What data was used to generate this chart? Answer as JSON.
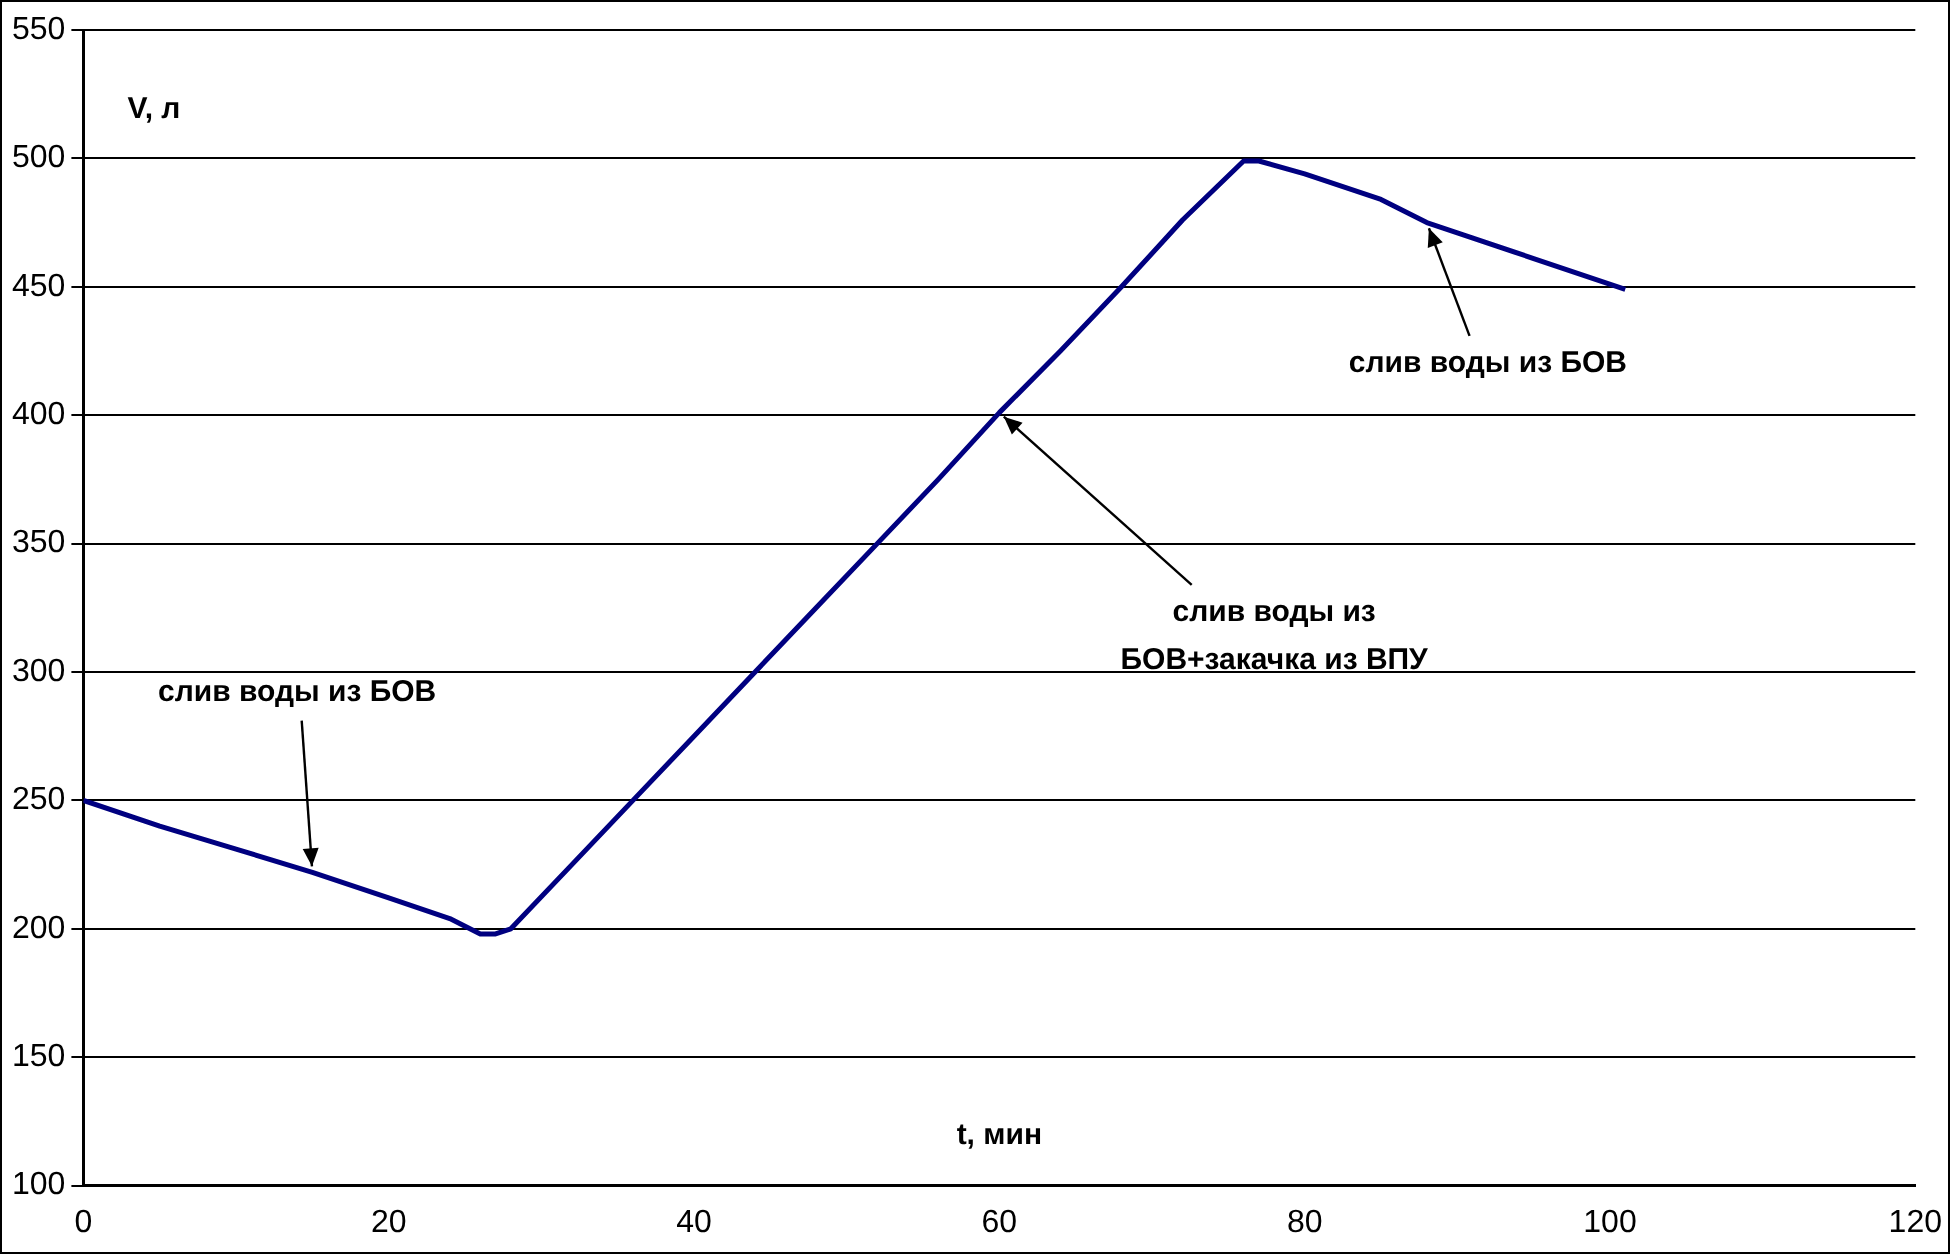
{
  "chart_data": {
    "type": "line",
    "xlabel": "t, мин",
    "ylabel": "V, л",
    "x": [
      0,
      5,
      10,
      15,
      20,
      24,
      26,
      27,
      28,
      32,
      36,
      40,
      44,
      48,
      52,
      56,
      60,
      64,
      68,
      72,
      76,
      77,
      80,
      85,
      88,
      90,
      95,
      101
    ],
    "series": [
      {
        "color": "#000080",
        "values": [
          250,
          240,
          231,
          222,
          212,
          204,
          198,
          198,
          200,
          225,
          250,
          275,
          300,
          325,
          350,
          375,
          401,
          425,
          450,
          476,
          499,
          499,
          494,
          484,
          475,
          471,
          461,
          449
        ]
      }
    ],
    "xlim": [
      0,
      120
    ],
    "xticks": [
      0,
      20,
      40,
      60,
      80,
      100,
      120
    ],
    "ylim": [
      100,
      550
    ],
    "yticks": [
      100,
      150,
      200,
      250,
      300,
      350,
      400,
      450,
      500,
      550
    ],
    "grid": "y",
    "legend": false,
    "marker": "none",
    "line_style": "solid",
    "annotations": [
      {
        "text": "слив воды из БОВ",
        "x": 15,
        "y": 222
      },
      {
        "text": "слив воды из\nБОВ+закачка из ВПУ",
        "x": 60,
        "y": 401
      },
      {
        "text": "слив воды из БОВ",
        "x": 88,
        "y": 475
      }
    ]
  }
}
